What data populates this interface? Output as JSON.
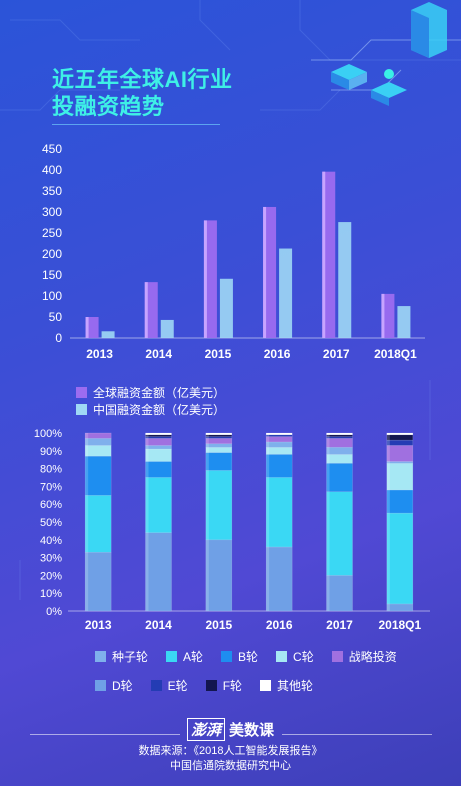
{
  "title": {
    "line1": "近五年全球AI行业",
    "line2": "投融资趋势"
  },
  "chart_data": [
    {
      "type": "bar",
      "categories": [
        "2013",
        "2014",
        "2015",
        "2016",
        "2017",
        "2018Q1"
      ],
      "series": [
        {
          "name": "全球融资金额（亿美元）",
          "values": [
            50,
            133,
            280,
            312,
            396,
            105
          ],
          "color": "#9c6cf0"
        },
        {
          "name": "中国融资金额（亿美元）",
          "values": [
            16,
            43,
            141,
            213,
            276,
            76
          ],
          "color": "#9fd8f5"
        }
      ],
      "y_ticks": [
        "450",
        "400",
        "350",
        "300",
        "250",
        "200",
        "150",
        "100",
        "50",
        "0"
      ],
      "ylim": [
        0,
        450
      ],
      "legend_position": "bottom"
    },
    {
      "type": "bar",
      "stacked": true,
      "percent": true,
      "categories": [
        "2013",
        "2014",
        "2015",
        "2016",
        "2017",
        "2018Q1"
      ],
      "series": [
        {
          "name": "D轮",
          "values": [
            33,
            44,
            40,
            36,
            20,
            4
          ],
          "color": "#6fa0e6"
        },
        {
          "name": "A轮",
          "values": [
            32,
            31,
            39,
            39,
            47,
            51
          ],
          "color": "#3ad8f4"
        },
        {
          "name": "B轮",
          "values": [
            22,
            9,
            10,
            13,
            16,
            13
          ],
          "color": "#1e8ef0"
        },
        {
          "name": "C轮",
          "values": [
            6,
            7,
            3,
            4,
            5,
            15
          ],
          "color": "#a6e8f4"
        },
        {
          "name": "种子轮",
          "values": [
            4,
            2,
            2,
            3,
            4,
            1
          ],
          "color": "#7fb0ec"
        },
        {
          "name": "战略投资",
          "values": [
            3,
            4,
            3,
            3,
            5,
            9
          ],
          "color": "#a070e0"
        },
        {
          "name": "E轮",
          "values": [
            0,
            1,
            1,
            1,
            1,
            3
          ],
          "color": "#243cb4"
        },
        {
          "name": "F轮",
          "values": [
            0,
            1,
            1,
            0,
            1,
            3
          ],
          "color": "#131650"
        },
        {
          "name": "其他轮",
          "values": [
            0,
            1,
            1,
            1,
            1,
            1
          ],
          "color": "#ffffff"
        }
      ],
      "y_ticks": [
        "100%",
        "90%",
        "80%",
        "70%",
        "60%",
        "50%",
        "40%",
        "30%",
        "20%",
        "10%",
        "0%"
      ],
      "ylim": [
        0,
        100
      ],
      "legend_position": "bottom"
    }
  ],
  "legend1": [
    {
      "label": "全球融资金额（亿美元）",
      "color": "#9c6cf0"
    },
    {
      "label": "中国融资金额（亿美元）",
      "color": "#9fd8f5"
    }
  ],
  "legend2": [
    [
      {
        "label": "种子轮",
        "color": "#7fb0ec"
      },
      {
        "label": "A轮",
        "color": "#3ad8f4"
      },
      {
        "label": "B轮",
        "color": "#1e8ef0"
      },
      {
        "label": "C轮",
        "color": "#a6e8f4"
      },
      {
        "label": "战略投资",
        "color": "#a070e0"
      }
    ],
    [
      {
        "label": "D轮",
        "color": "#6fa0e6"
      },
      {
        "label": "E轮",
        "color": "#243cb4"
      },
      {
        "label": "F轮",
        "color": "#131650"
      },
      {
        "label": "其他轮",
        "color": "#ffffff"
      }
    ]
  ],
  "footer": {
    "brand_logo": "澎湃",
    "brand_name": "美数课",
    "source_line1": "数据来源：《2018人工智能发展报告》",
    "source_line2": "中国信通院数据研究中心"
  }
}
